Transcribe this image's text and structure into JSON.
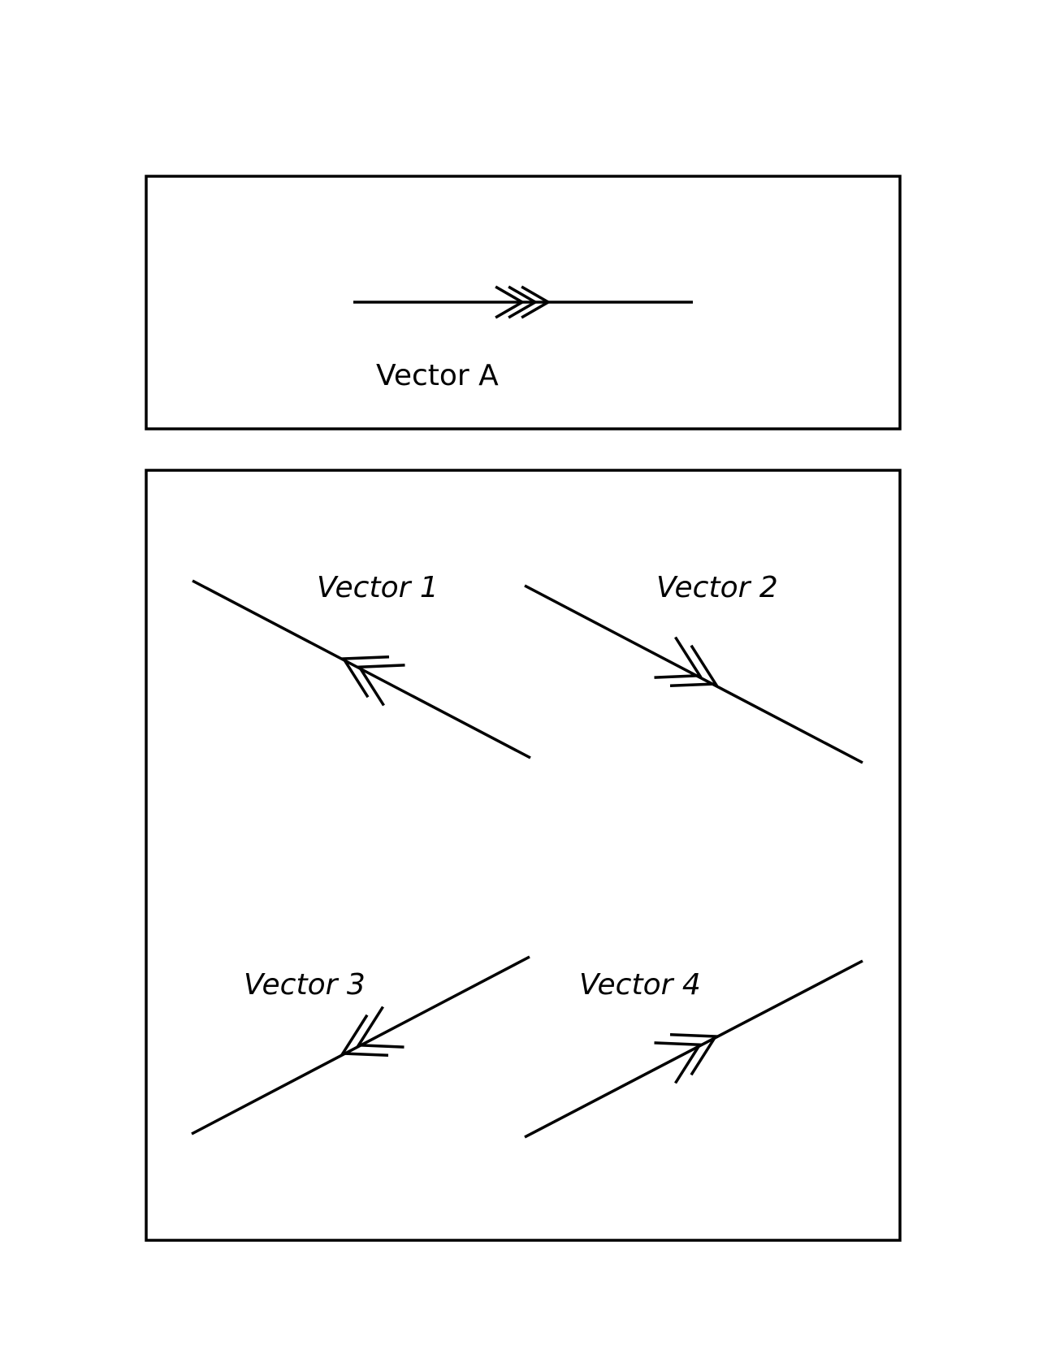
{
  "reference": {
    "label": "Vector A",
    "chevrons": 3,
    "direction": "right"
  },
  "options": [
    {
      "label": "Vector 1",
      "chevrons": 2,
      "direction": "up-left"
    },
    {
      "label": "Vector 2",
      "chevrons": 2,
      "direction": "down-right"
    },
    {
      "label": "Vector 3",
      "chevrons": 2,
      "direction": "down-left"
    },
    {
      "label": "Vector 4",
      "chevrons": 2,
      "direction": "up-right"
    }
  ],
  "colors": {
    "stroke": "#000000",
    "background": "#ffffff"
  }
}
